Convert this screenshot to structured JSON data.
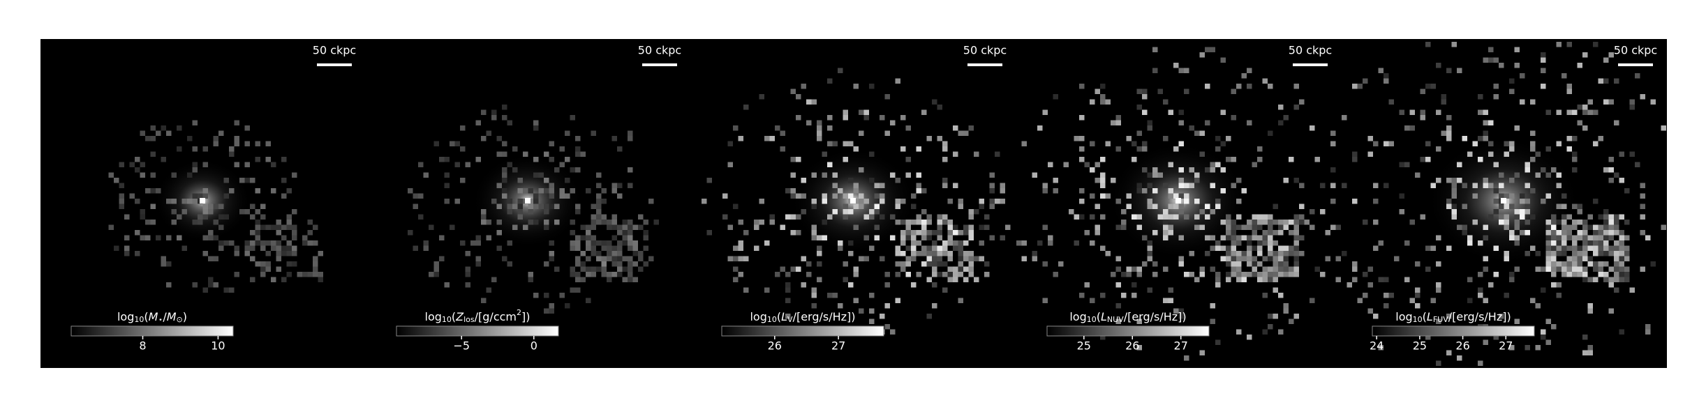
{
  "panels": [
    {
      "scale_label": "50 ckpc",
      "colorbar": {
        "label": [
          {
            "text": "log"
          },
          {
            "text": "10",
            "style": "sub"
          },
          {
            "text": "("
          },
          {
            "text": "M",
            "style": "italic"
          },
          {
            "text": "⋆",
            "style": "sub"
          },
          {
            "text": "/"
          },
          {
            "text": "M",
            "style": "italic"
          },
          {
            "text": "⊙",
            "style": "sub"
          },
          {
            "text": ")"
          }
        ],
        "range": [
          6.1,
          10.4
        ],
        "ticks": [
          8,
          10
        ]
      }
    },
    {
      "scale_label": "50 ckpc",
      "colorbar": {
        "label": [
          {
            "text": "log"
          },
          {
            "text": "10",
            "style": "sub"
          },
          {
            "text": "("
          },
          {
            "text": "Z",
            "style": "italic"
          },
          {
            "text": "los",
            "style": "sub"
          },
          {
            "text": "/[g/ccm"
          },
          {
            "text": "2",
            "style": "sup"
          },
          {
            "text": "])"
          }
        ],
        "range": [
          -9.5,
          1.7
        ],
        "ticks": [
          {
            "value": -5,
            "label": "−5"
          },
          0
        ]
      }
    },
    {
      "scale_label": "50 ckpc",
      "colorbar": {
        "label": [
          {
            "text": "log"
          },
          {
            "text": "10",
            "style": "sub"
          },
          {
            "text": "("
          },
          {
            "text": "L",
            "style": "italic"
          },
          {
            "text": "V",
            "style": "sub"
          },
          {
            "text": "/[erg/s/Hz])"
          }
        ],
        "range": [
          25.17,
          27.71
        ],
        "ticks": [
          26,
          27
        ]
      }
    },
    {
      "scale_label": "50 ckpc",
      "colorbar": {
        "label": [
          {
            "text": "log"
          },
          {
            "text": "10",
            "style": "sub"
          },
          {
            "text": "("
          },
          {
            "text": "L",
            "style": "italic"
          },
          {
            "text": "NUV",
            "style": "sub"
          },
          {
            "text": "/[erg/s/Hz])"
          }
        ],
        "range": [
          24.24,
          27.58
        ],
        "ticks": [
          25,
          26,
          27
        ]
      }
    },
    {
      "scale_label": "50 ckpc",
      "colorbar": {
        "label": [
          {
            "text": "log"
          },
          {
            "text": "10",
            "style": "sub"
          },
          {
            "text": "("
          },
          {
            "text": "L",
            "style": "italic"
          },
          {
            "text": "FUV",
            "style": "sub"
          },
          {
            "text": "/[erg/s/Hz])"
          }
        ],
        "range": [
          23.9,
          27.66
        ],
        "ticks": [
          24,
          25,
          26,
          27
        ]
      }
    }
  ]
}
